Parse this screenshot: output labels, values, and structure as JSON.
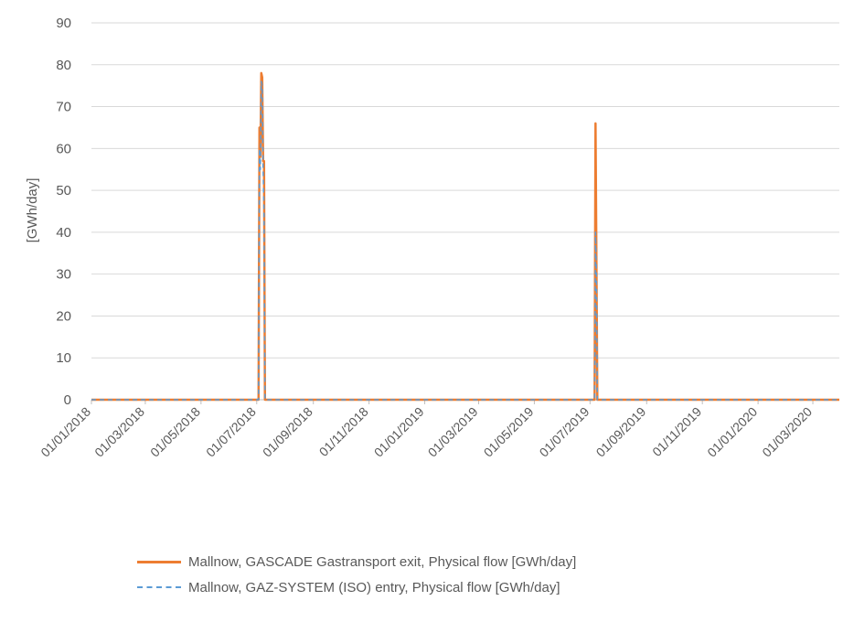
{
  "chart_data": {
    "type": "line",
    "title": "",
    "xlabel": "",
    "ylabel": "[GWh/day]",
    "ylim": [
      0,
      90
    ],
    "yticks": [
      0,
      10,
      20,
      30,
      40,
      50,
      60,
      70,
      80,
      90
    ],
    "xlim": [
      "2018-01-01",
      "2020-03-30"
    ],
    "x_tick_labels": [
      "01/01/2018",
      "01/03/2018",
      "01/05/2018",
      "01/07/2018",
      "01/09/2018",
      "01/11/2018",
      "01/01/2019",
      "01/03/2019",
      "01/05/2019",
      "01/07/2019",
      "01/09/2019",
      "01/11/2019",
      "01/01/2020",
      "01/03/2020"
    ],
    "x_tick_dates": [
      "2018-01-01",
      "2018-03-01",
      "2018-05-01",
      "2018-07-01",
      "2018-09-01",
      "2018-11-01",
      "2019-01-01",
      "2019-03-01",
      "2019-05-01",
      "2019-07-01",
      "2019-09-01",
      "2019-11-01",
      "2020-01-01",
      "2020-03-01"
    ],
    "grid": true,
    "legend_position": "bottom",
    "series": [
      {
        "name": "Mallnow, GASCADE Gastransport exit, Physical flow [GWh/day]",
        "color": "#ED7D31",
        "style": "solid",
        "points": [
          [
            "2018-01-01",
            0
          ],
          [
            "2018-07-03",
            0
          ],
          [
            "2018-07-04",
            65
          ],
          [
            "2018-07-05",
            58
          ],
          [
            "2018-07-06",
            78
          ],
          [
            "2018-07-07",
            77
          ],
          [
            "2018-07-08",
            57
          ],
          [
            "2018-07-09",
            57
          ],
          [
            "2018-07-10",
            0
          ],
          [
            "2019-07-06",
            0
          ],
          [
            "2019-07-07",
            66
          ],
          [
            "2019-07-08",
            33
          ],
          [
            "2019-07-09",
            0
          ],
          [
            "2020-03-30",
            0
          ]
        ]
      },
      {
        "name": "Mallnow, GAZ-SYSTEM (ISO) entry, Physical flow [GWh/day]",
        "color": "#5B9BD5",
        "style": "dashed",
        "points": [
          [
            "2018-01-01",
            0
          ],
          [
            "2018-07-03",
            0
          ],
          [
            "2018-07-04",
            60
          ],
          [
            "2018-07-05",
            55
          ],
          [
            "2018-07-06",
            76
          ],
          [
            "2018-07-07",
            75
          ],
          [
            "2018-07-08",
            55
          ],
          [
            "2018-07-09",
            45
          ],
          [
            "2018-07-10",
            0
          ],
          [
            "2019-07-06",
            0
          ],
          [
            "2019-07-07",
            40
          ],
          [
            "2019-07-08",
            30
          ],
          [
            "2019-07-09",
            0
          ],
          [
            "2020-03-30",
            0
          ]
        ]
      }
    ]
  }
}
